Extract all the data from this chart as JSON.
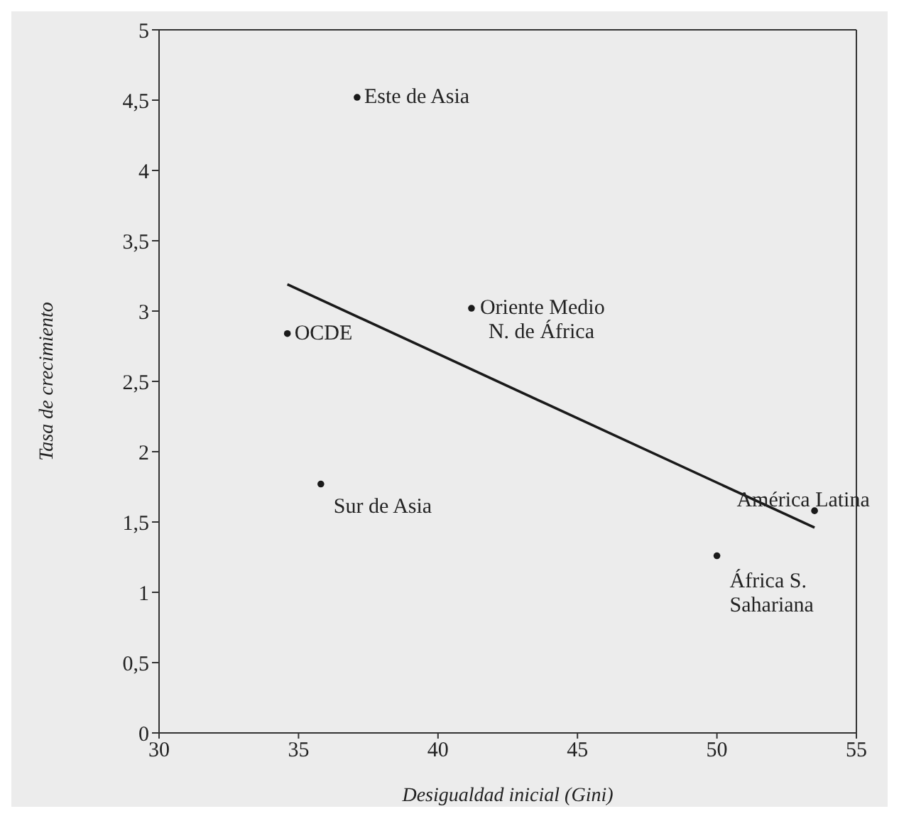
{
  "chart_data": {
    "type": "scatter",
    "xlabel": "Desigualdad inicial (Gini)",
    "ylabel": "Tasa de crecimiento",
    "xlim": [
      30,
      55
    ],
    "xticks": [
      30,
      35,
      40,
      45,
      50,
      55
    ],
    "ylim": [
      0,
      5
    ],
    "yticks": [
      0,
      {
        "value": 0.5,
        "label": "0,5"
      },
      1,
      {
        "value": 1.5,
        "label": "1,5"
      },
      2,
      {
        "value": 2.5,
        "label": "2,5"
      },
      3,
      {
        "value": 3.5,
        "label": "3,5"
      },
      4,
      {
        "value": 4.5,
        "label": "4,5"
      },
      5
    ],
    "series": [
      {
        "marker": "circle",
        "color": "#1a1a1a",
        "x": [
          37.1,
          34.6,
          41.2,
          35.8,
          53.5,
          50.0
        ],
        "values": [
          4.52,
          2.84,
          3.02,
          1.77,
          1.58,
          1.26
        ]
      },
      {
        "type": "line",
        "color": "#1a1a1a",
        "x": [
          34.6,
          53.5
        ],
        "values": [
          3.19,
          1.46
        ]
      }
    ],
    "annotations": [
      {
        "text": "Este de Asia",
        "x": 37.1,
        "y": 4.52
      },
      {
        "text": "OCDE",
        "x": 34.6,
        "y": 2.84
      },
      {
        "text": "Oriente Medio\nN. de África",
        "x": 41.2,
        "y": 3.02
      },
      {
        "text": "Sur de Asia",
        "x": 35.8,
        "y": 1.77
      },
      {
        "text": "América Latina",
        "x": 53.5,
        "y": 1.58
      },
      {
        "text": "África S.\nSahariana",
        "x": 50.0,
        "y": 1.26
      }
    ]
  }
}
